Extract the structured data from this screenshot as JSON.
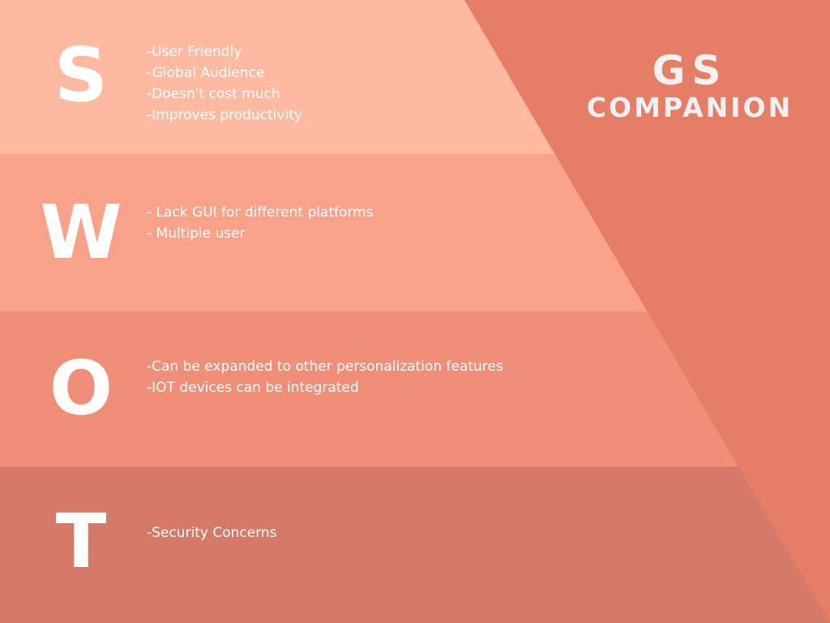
{
  "colors": {
    "strengths_band": "#FDBAA1",
    "weaknesses_band": "#F9A289",
    "opportunities_band": "#F08E78",
    "threats_band": "#D57A69",
    "accent_triangle": "#E67E67",
    "letter_text": "#FFFFFF",
    "brand_text": "#F1F1F1"
  },
  "brand": {
    "line1": "GS",
    "line2": "COMPANION"
  },
  "sections": [
    {
      "letter": "S",
      "items": [
        "-User Friendly",
        "-Global Audience",
        "-Doesn't cost much",
        "-Improves productivity"
      ]
    },
    {
      "letter": "W",
      "items": [
        "- Lack GUI for different platforms",
        "- Multiple user"
      ]
    },
    {
      "letter": "O",
      "items": [
        "-Can be expanded to other personalization features",
        "-IOT devices can be integrated"
      ]
    },
    {
      "letter": "T",
      "items": [
        "-Security Concerns"
      ]
    }
  ]
}
